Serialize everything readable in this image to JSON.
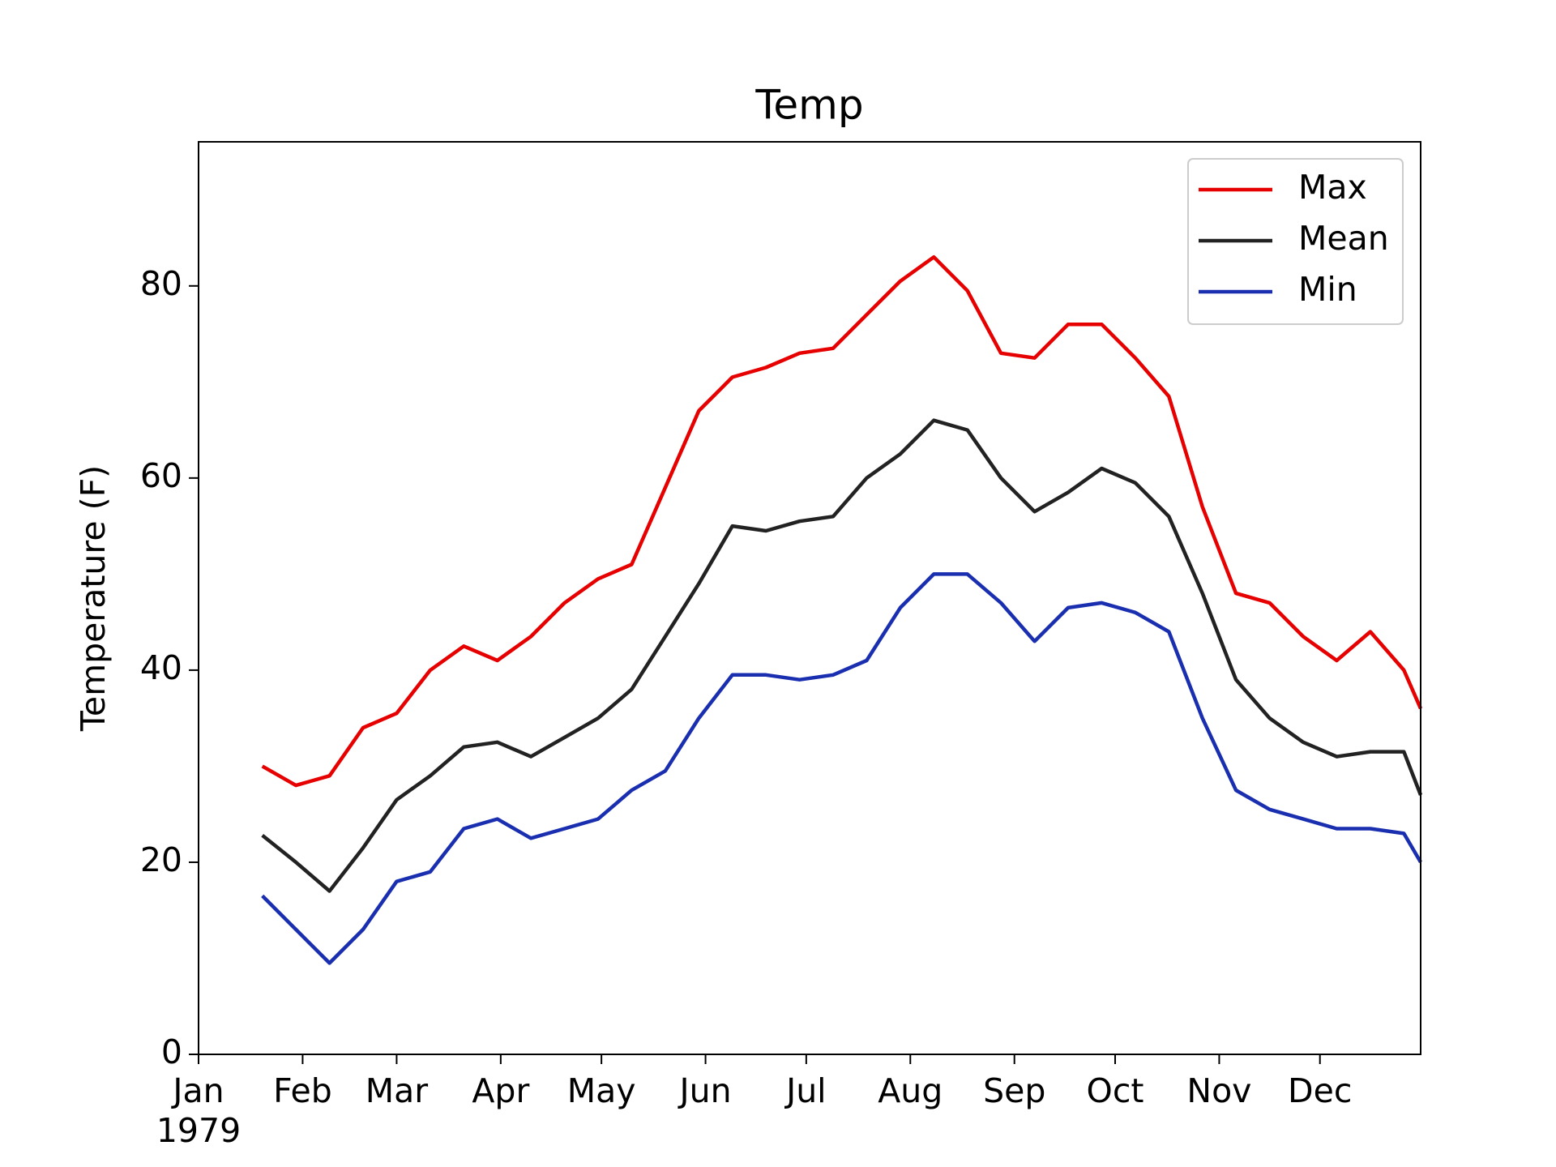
{
  "chart_data": {
    "type": "line",
    "title": "Temp",
    "y_label": "Temperature (F)",
    "x_year_label": "1979",
    "x": [
      19,
      29,
      39,
      49,
      59,
      69,
      79,
      89,
      99,
      109,
      119,
      129,
      139,
      149,
      159,
      169,
      179,
      189,
      199,
      209,
      219,
      229,
      239,
      249,
      259,
      269,
      279,
      289,
      299,
      309,
      319,
      329,
      339,
      349,
      359,
      364
    ],
    "series": [
      {
        "name": "Max",
        "color": "#e60000",
        "values": [
          30,
          28,
          29,
          34,
          35.5,
          40,
          42.5,
          41,
          43.5,
          47,
          49.5,
          51,
          59,
          67,
          70.5,
          71.5,
          73,
          73.5,
          77,
          80.5,
          83,
          79.5,
          73,
          72.5,
          76,
          76,
          72.5,
          68.5,
          57,
          48,
          47,
          43.5,
          41,
          44,
          40,
          36
        ]
      },
      {
        "name": "Mean",
        "color": "#222222",
        "values": [
          22.8,
          20,
          17,
          21.5,
          26.5,
          29,
          32,
          32.5,
          31,
          33,
          35,
          38,
          43.5,
          49,
          55,
          54.5,
          55.5,
          56,
          60,
          62.5,
          66,
          65,
          60,
          56.5,
          58.5,
          61,
          59.5,
          56,
          48,
          39,
          35,
          32.5,
          31,
          31.5,
          31.5,
          27
        ]
      },
      {
        "name": "Min",
        "color": "#1a2fb0",
        "values": [
          16.5,
          13,
          9.5,
          13,
          18,
          19,
          23.5,
          24.5,
          22.5,
          23.5,
          24.5,
          27.5,
          29.5,
          35,
          39.5,
          39.5,
          39,
          39.5,
          41,
          46.5,
          50,
          50,
          47,
          43,
          46.5,
          47,
          46,
          44,
          35,
          27.5,
          25.5,
          24.5,
          23.5,
          23.5,
          23,
          20
        ]
      }
    ],
    "xlim": [
      0,
      364
    ],
    "xticks": [
      {
        "value": 0,
        "label": "Jan"
      },
      {
        "value": 31,
        "label": "Feb"
      },
      {
        "value": 59,
        "label": "Mar"
      },
      {
        "value": 90,
        "label": "Apr"
      },
      {
        "value": 120,
        "label": "May"
      },
      {
        "value": 151,
        "label": "Jun"
      },
      {
        "value": 181,
        "label": "Jul"
      },
      {
        "value": 212,
        "label": "Aug"
      },
      {
        "value": 243,
        "label": "Sep"
      },
      {
        "value": 273,
        "label": "Oct"
      },
      {
        "value": 304,
        "label": "Nov"
      },
      {
        "value": 334,
        "label": "Dec"
      }
    ],
    "ylim": [
      0,
      95
    ],
    "yticks": [
      0,
      20,
      40,
      60,
      80
    ],
    "legend": "upper right",
    "grid": false
  }
}
